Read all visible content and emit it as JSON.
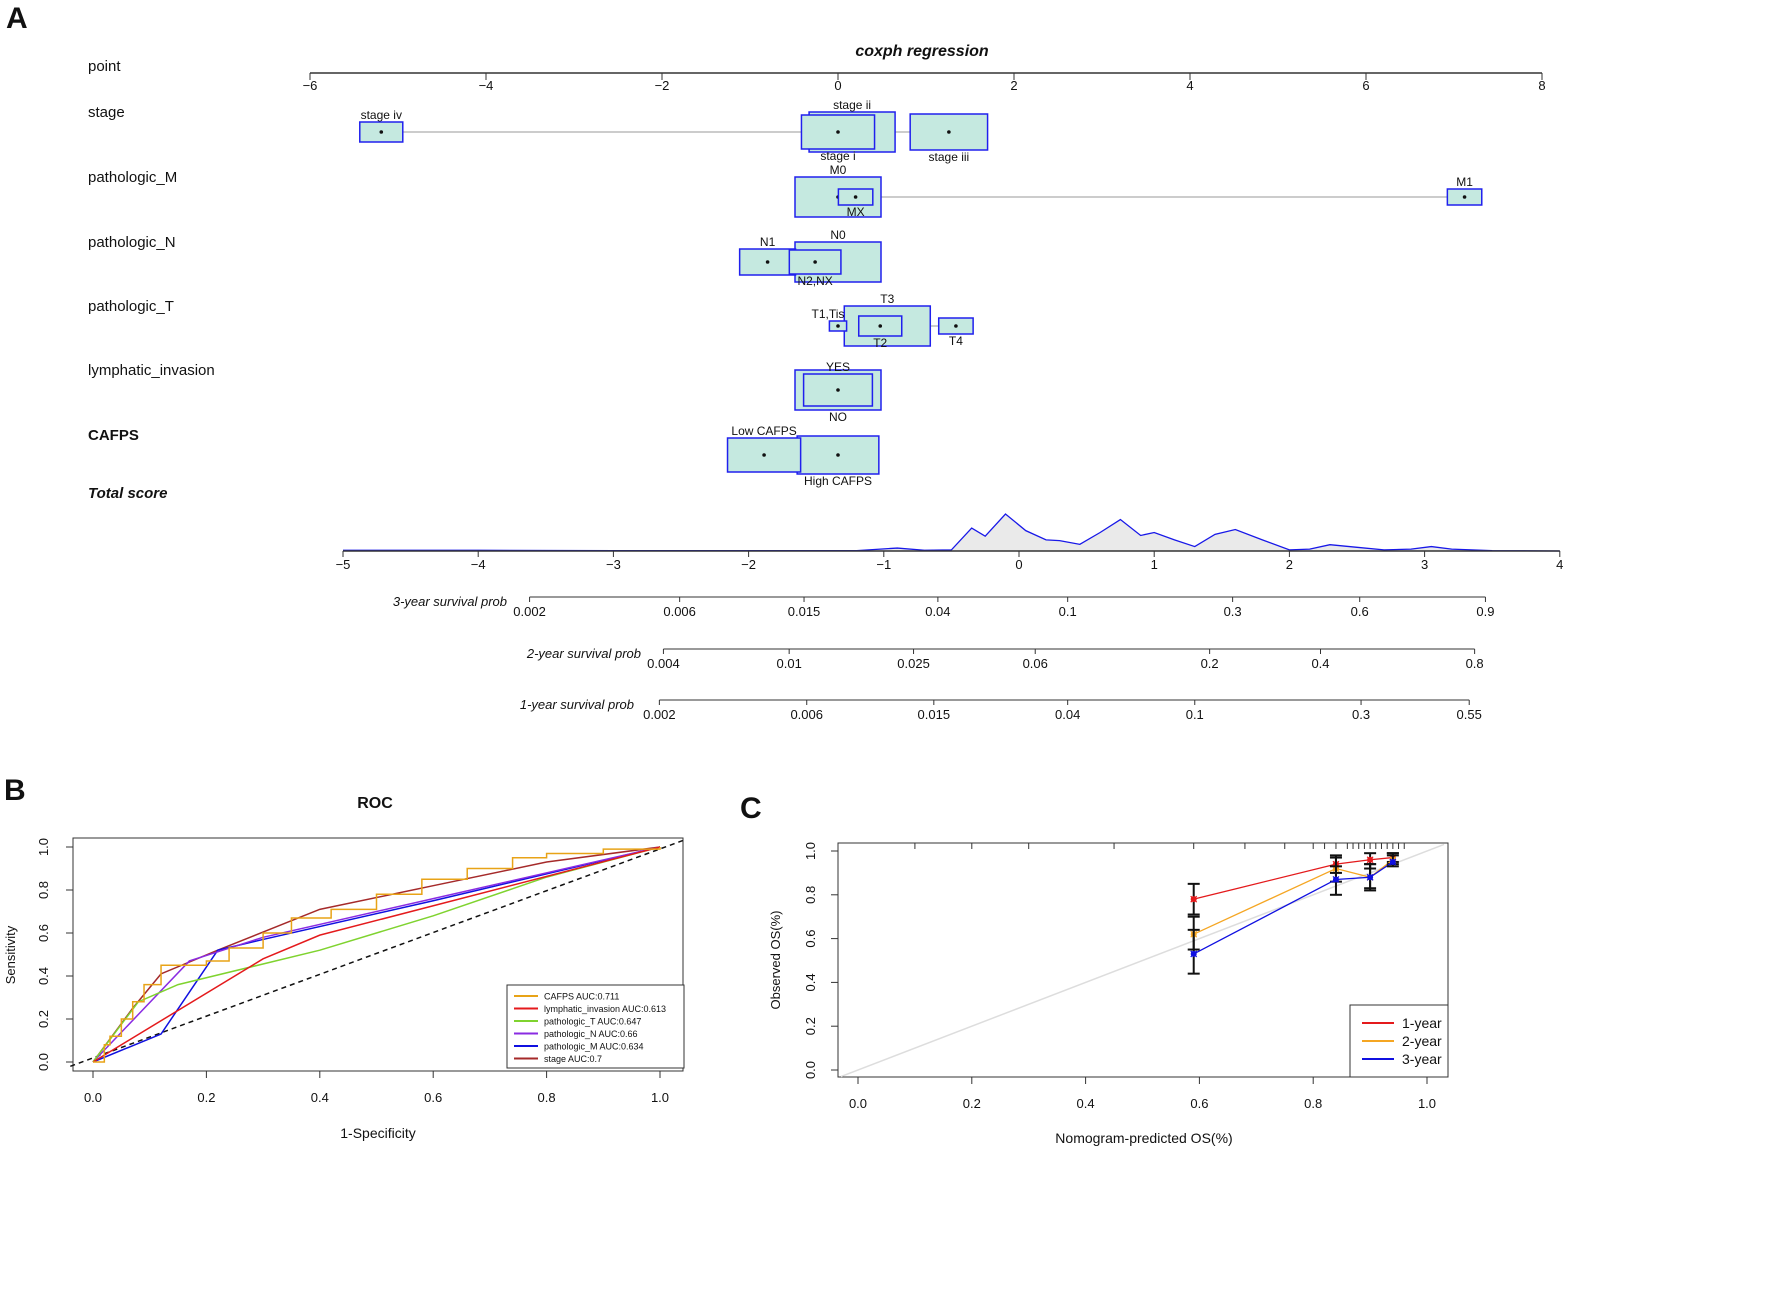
{
  "chart_data": [
    {
      "panel": "A",
      "type": "nomogram",
      "title": "coxph regression",
      "point_axis": {
        "label": "point",
        "range": [
          -6,
          8
        ],
        "ticks": [
          -6,
          -4,
          -2,
          0,
          2,
          4,
          6,
          8
        ]
      },
      "variables": [
        {
          "name": "stage",
          "levels": [
            {
              "label": "stage iv",
              "points": -5.19,
              "rel_n": 0.5,
              "label_pos": "above"
            },
            {
              "label": "stage i",
              "points": 0.0,
              "rel_n": 0.85,
              "label_pos": "below"
            },
            {
              "label": "stage ii",
              "points": 0.16,
              "rel_n": 1.0,
              "label_pos": "above"
            },
            {
              "label": "stage iii",
              "points": 1.26,
              "rel_n": 0.9,
              "label_pos": "below"
            }
          ]
        },
        {
          "name": "pathologic_M",
          "levels": [
            {
              "label": "M0",
              "points": 0.0,
              "rel_n": 1.0,
              "label_pos": "above"
            },
            {
              "label": "MX",
              "points": 0.2,
              "rel_n": 0.4,
              "label_pos": "below"
            },
            {
              "label": "M1",
              "points": 7.12,
              "rel_n": 0.4,
              "label_pos": "above"
            }
          ]
        },
        {
          "name": "pathologic_N",
          "levels": [
            {
              "label": "N0",
              "points": 0.0,
              "rel_n": 1.0,
              "label_pos": "above"
            },
            {
              "label": "N1",
              "points": -0.8,
              "rel_n": 0.65,
              "label_pos": "above"
            },
            {
              "label": "N2,NX",
              "points": -0.26,
              "rel_n": 0.6,
              "label_pos": "below"
            }
          ]
        },
        {
          "name": "pathologic_T",
          "levels": [
            {
              "label": "T1,Tis",
              "points": 0.0,
              "rel_n": 0.2,
              "label_pos": "above-left"
            },
            {
              "label": "T2",
              "points": 0.48,
              "rel_n": 0.5,
              "label_pos": "below"
            },
            {
              "label": "T3",
              "points": 0.56,
              "rel_n": 1.0,
              "label_pos": "above"
            },
            {
              "label": "T4",
              "points": 1.34,
              "rel_n": 0.4,
              "label_pos": "below"
            }
          ]
        },
        {
          "name": "lymphatic_invasion",
          "levels": [
            {
              "label": "NO",
              "points": 0.0,
              "rel_n": 1.0,
              "label_pos": "below"
            },
            {
              "label": "YES",
              "points": 0.0,
              "rel_n": 0.8,
              "label_pos": "above"
            }
          ]
        },
        {
          "name": "CAFPS",
          "bold": true,
          "levels": [
            {
              "label": "Low CAFPS",
              "points": -0.84,
              "rel_n": 0.85,
              "label_pos": "above"
            },
            {
              "label": "High CAFPS",
              "points": 0.0,
              "rel_n": 0.95,
              "label_pos": "below"
            }
          ]
        }
      ],
      "total_score": {
        "label": "Total score",
        "range": [
          -5,
          4
        ],
        "ticks": [
          -5,
          -4,
          -3,
          -2,
          -1,
          0,
          1,
          2,
          3,
          4
        ],
        "density": [
          [
            -5,
            0.02
          ],
          [
            -4,
            0.02
          ],
          [
            -3,
            0.01
          ],
          [
            -1.2,
            0.01
          ],
          [
            -0.9,
            0.08
          ],
          [
            -0.7,
            0.02
          ],
          [
            -0.5,
            0.03
          ],
          [
            -0.35,
            0.62
          ],
          [
            -0.25,
            0.4
          ],
          [
            -0.1,
            1.0
          ],
          [
            0.05,
            0.55
          ],
          [
            0.2,
            0.3
          ],
          [
            0.3,
            0.28
          ],
          [
            0.45,
            0.18
          ],
          [
            0.6,
            0.5
          ],
          [
            0.75,
            0.85
          ],
          [
            0.9,
            0.42
          ],
          [
            1.0,
            0.5
          ],
          [
            1.15,
            0.3
          ],
          [
            1.3,
            0.12
          ],
          [
            1.45,
            0.45
          ],
          [
            1.6,
            0.58
          ],
          [
            1.8,
            0.3
          ],
          [
            2.0,
            0.03
          ],
          [
            2.15,
            0.05
          ],
          [
            2.3,
            0.17
          ],
          [
            2.5,
            0.1
          ],
          [
            2.7,
            0.03
          ],
          [
            2.9,
            0.05
          ],
          [
            3.05,
            0.12
          ],
          [
            3.2,
            0.05
          ],
          [
            3.5,
            0.01
          ],
          [
            4,
            0.0
          ]
        ]
      },
      "survival_axes": [
        {
          "label": "3-year survival prob",
          "ticks": [
            {
              "p": "0.002",
              "score": -3.62
            },
            {
              "p": "0.006",
              "score": -2.51
            },
            {
              "p": "0.015",
              "score": -1.59
            },
            {
              "p": "0.04",
              "score": -0.6
            },
            {
              "p": "0.1",
              "score": 0.36
            },
            {
              "p": "0.3",
              "score": 1.58
            },
            {
              "p": "0.6",
              "score": 2.52
            },
            {
              "p": "0.9",
              "score": 3.45
            }
          ]
        },
        {
          "label": "2-year survival prob",
          "ticks": [
            {
              "p": "0.004",
              "score": -2.63
            },
            {
              "p": "0.01",
              "score": -1.7
            },
            {
              "p": "0.025",
              "score": -0.78
            },
            {
              "p": "0.06",
              "score": 0.12
            },
            {
              "p": "0.2",
              "score": 1.41
            },
            {
              "p": "0.4",
              "score": 2.23
            },
            {
              "p": "0.8",
              "score": 3.37
            }
          ]
        },
        {
          "label": "1-year survival prob",
          "ticks": [
            {
              "p": "0.002",
              "score": -2.66
            },
            {
              "p": "0.006",
              "score": -1.57
            },
            {
              "p": "0.015",
              "score": -0.63
            },
            {
              "p": "0.04",
              "score": 0.36
            },
            {
              "p": "0.1",
              "score": 1.3
            },
            {
              "p": "0.3",
              "score": 2.53
            },
            {
              "p": "0.55",
              "score": 3.33
            }
          ]
        }
      ]
    },
    {
      "panel": "B",
      "type": "line",
      "title": "ROC",
      "xlabel": "1-Specificity",
      "ylabel": "Sensitivity",
      "xlim": [
        0,
        1
      ],
      "ylim": [
        0,
        1
      ],
      "ticks": [
        "0.0",
        "0.2",
        "0.4",
        "0.6",
        "0.8",
        "1.0"
      ],
      "legend_position": "bottom-right",
      "series": [
        {
          "name": "CAFPS AUC:0.711",
          "color": "#E8A317",
          "step": true,
          "points": [
            [
              0,
              0
            ],
            [
              0.02,
              0.08
            ],
            [
              0.03,
              0.12
            ],
            [
              0.05,
              0.2
            ],
            [
              0.07,
              0.28
            ],
            [
              0.09,
              0.36
            ],
            [
              0.12,
              0.45
            ],
            [
              0.2,
              0.47
            ],
            [
              0.24,
              0.53
            ],
            [
              0.3,
              0.6
            ],
            [
              0.35,
              0.67
            ],
            [
              0.42,
              0.71
            ],
            [
              0.5,
              0.78
            ],
            [
              0.58,
              0.85
            ],
            [
              0.66,
              0.9
            ],
            [
              0.74,
              0.95
            ],
            [
              0.8,
              0.97
            ],
            [
              0.9,
              0.99
            ],
            [
              1,
              1
            ]
          ]
        },
        {
          "name": "lymphatic_invasion AUC:0.613",
          "color": "#E41A1C",
          "points": [
            [
              0,
              0
            ],
            [
              0.3,
              0.48
            ],
            [
              0.4,
              0.59
            ],
            [
              1,
              1
            ]
          ]
        },
        {
          "name": "pathologic_T AUC:0.647",
          "color": "#7FD32F",
          "points": [
            [
              0,
              0
            ],
            [
              0.08,
              0.28
            ],
            [
              0.15,
              0.36
            ],
            [
              0.4,
              0.52
            ],
            [
              0.6,
              0.68
            ],
            [
              0.8,
              0.86
            ],
            [
              1,
              1
            ]
          ]
        },
        {
          "name": "pathologic_N AUC:0.66",
          "color": "#8A2BE2",
          "points": [
            [
              0,
              0
            ],
            [
              0.17,
              0.47
            ],
            [
              0.3,
              0.58
            ],
            [
              0.6,
              0.76
            ],
            [
              1,
              1
            ]
          ]
        },
        {
          "name": "pathologic_M AUC:0.634",
          "color": "#1010E0",
          "points": [
            [
              0,
              0
            ],
            [
              0.12,
              0.13
            ],
            [
              0.22,
              0.52
            ],
            [
              0.3,
              0.57
            ],
            [
              0.6,
              0.75
            ],
            [
              1,
              1
            ]
          ]
        },
        {
          "name": "stage AUC:0.7",
          "color": "#A52A2A",
          "points": [
            [
              0,
              0
            ],
            [
              0.07,
              0.25
            ],
            [
              0.12,
              0.41
            ],
            [
              0.22,
              0.52
            ],
            [
              0.4,
              0.71
            ],
            [
              0.6,
              0.82
            ],
            [
              0.8,
              0.93
            ],
            [
              1,
              1
            ]
          ]
        }
      ]
    },
    {
      "panel": "C",
      "type": "scatter",
      "xlabel": "Nomogram-predicted OS(%)",
      "ylabel": "Observed OS(%)",
      "xlim": [
        0,
        1
      ],
      "ylim": [
        0,
        1
      ],
      "ticks": [
        "0.0",
        "0.2",
        "0.4",
        "0.6",
        "0.8",
        "1.0"
      ],
      "legend_position": "bottom-right",
      "series": [
        {
          "name": "1-year",
          "color": "#E41A1C",
          "points": [
            [
              0.59,
              0.78,
              0.71,
              0.85
            ],
            [
              0.84,
              0.94,
              0.9,
              0.98
            ],
            [
              0.9,
              0.96,
              0.92,
              0.99
            ],
            [
              0.94,
              0.97,
              0.95,
              0.99
            ]
          ]
        },
        {
          "name": "2-year",
          "color": "#F5A623",
          "points": [
            [
              0.59,
              0.62,
              0.55,
              0.7
            ],
            [
              0.84,
              0.92,
              0.86,
              0.97
            ],
            [
              0.9,
              0.88,
              0.83,
              0.94
            ],
            [
              0.94,
              0.96,
              0.94,
              0.99
            ]
          ]
        },
        {
          "name": "3-year",
          "color": "#1010E0",
          "points": [
            [
              0.59,
              0.53,
              0.44,
              0.64
            ],
            [
              0.84,
              0.87,
              0.8,
              0.93
            ],
            [
              0.9,
              0.88,
              0.82,
              0.94
            ],
            [
              0.94,
              0.95,
              0.93,
              0.98
            ]
          ]
        }
      ],
      "rug": [
        0.1,
        0.2,
        0.3,
        0.45,
        0.59,
        0.68,
        0.75,
        0.8,
        0.82,
        0.84,
        0.86,
        0.87,
        0.88,
        0.89,
        0.9,
        0.91,
        0.92,
        0.93,
        0.94,
        0.95,
        0.96
      ]
    }
  ],
  "panel_labels": [
    "A",
    "B",
    "C"
  ]
}
